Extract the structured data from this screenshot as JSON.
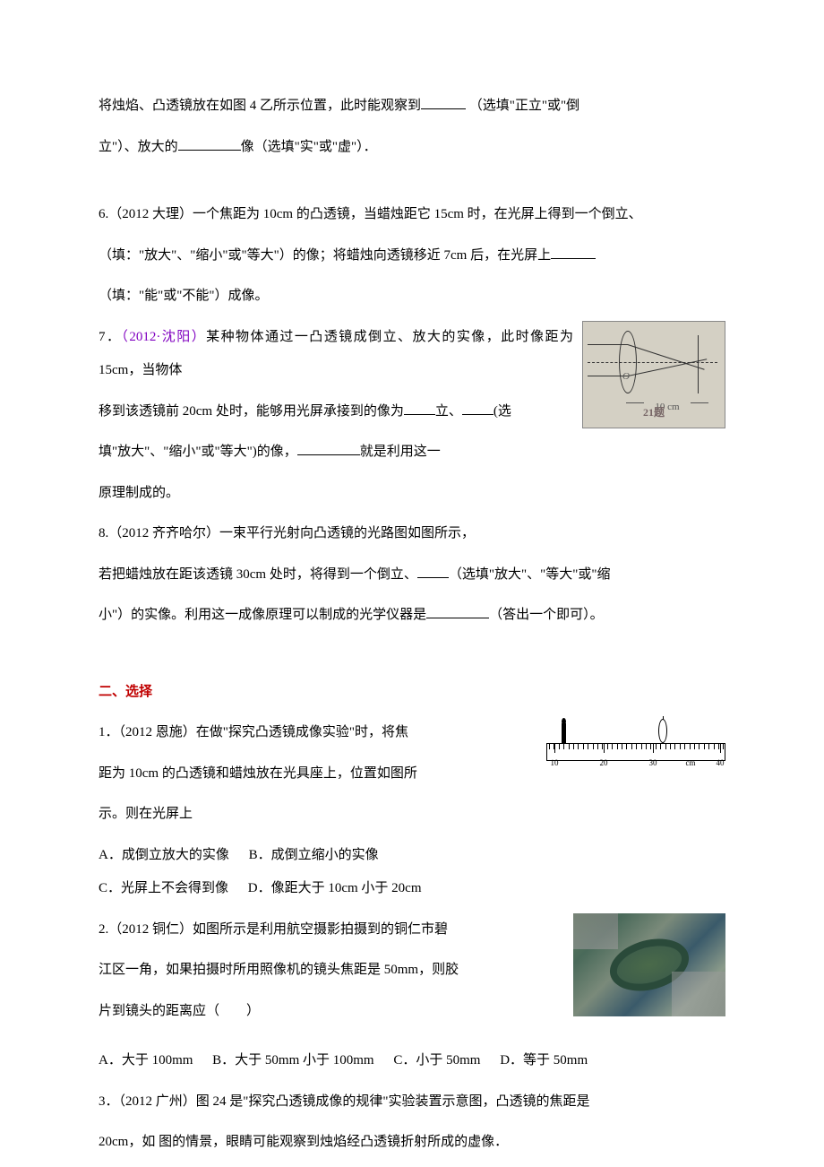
{
  "intro": {
    "line1_a": "将烛焰、凸透镜放在如图 4 乙所示位置，此时能观察到",
    "line1_b": "（选填\"正立\"或\"倒",
    "line2_a": "立\"）、放大的",
    "line2_b": "像（选填\"实\"或\"虚\"）．"
  },
  "q6": {
    "line1": "6.（2012 大理）一个焦距为 10cm 的凸透镜，当蜡烛距它 15cm 时，在光屏上得到一个倒立、",
    "line2_a": "（填：\"放大\"、\"缩小\"或\"等大\"）的像；将蜡烛向透镜移近 7cm 后，在光屏上",
    "line3": "（填：\"能\"或\"不能\"）成像。"
  },
  "q7": {
    "prefix": "7．",
    "source": "（2012·沈阳）",
    "line1": "某种物体通过一凸透镜成倒立、放大的实像，此时像距为 15cm，当物体",
    "line2_a": "移到该透镜前 20cm 处时，能够用光屏承接到的像为",
    "line2_b": "立、",
    "line2_c": "(选",
    "line3_a": "填\"放大\"、\"缩小\"或\"等大\")的像，",
    "line3_b": "就是利用这一",
    "line4": "原理制成的。",
    "img_dist": "10 cm",
    "img_caption": "21题",
    "img_o": "O"
  },
  "q8": {
    "line1": "8.（2012 齐齐哈尔）一束平行光射向凸透镜的光路图如图所示，",
    "line2_a": "若把蜡烛放在距该透镜 30cm 处时，将得到一个倒立、",
    "line2_b": "（选填\"放大\"、\"等大\"或\"缩",
    "line3_a": "小\"）的实像。利用这一成像原理可以制成的光学仪器是",
    "line3_b": "（答出一个即可）。"
  },
  "section2": {
    "title": "二、选择"
  },
  "s2q1": {
    "line1": "1．（2012 恩施）在做\"探究凸透镜成像实验\"时，将焦",
    "line2": "距为 10cm 的凸透镜和蜡烛放在光具座上，位置如图所",
    "line3": "示。则在光屏上",
    "optA": "A．成倒立放大的实像",
    "optB": "B．成倒立缩小的实像",
    "optC": "C．光屏上不会得到像",
    "optD": "D．像距大于 10cm 小于 20cm",
    "ruler_labels": [
      "10",
      "20",
      "30",
      "cm",
      "40"
    ]
  },
  "s2q2": {
    "line1": "2.（2012 铜仁）如图所示是利用航空摄影拍摄到的铜仁市碧",
    "line2": "江区一角，如果拍摄时所用照像机的镜头焦距是 50mm，则胶",
    "line3": "片到镜头的距离应（　　）",
    "optA": "A．大于 100mm",
    "optB": "B．大于 50mm 小于 100mm",
    "optC": "C．小于 50mm",
    "optD": "D．等于 50mm"
  },
  "s2q3": {
    "line1": "3．（2012 广州）图 24 是\"探究凸透镜成像的规律\"实验装置示意图，凸透镜的焦距是",
    "line2": "20cm，如 图的情景，眼睛可能观察到烛焰经凸透镜折射所成的虚像．"
  }
}
